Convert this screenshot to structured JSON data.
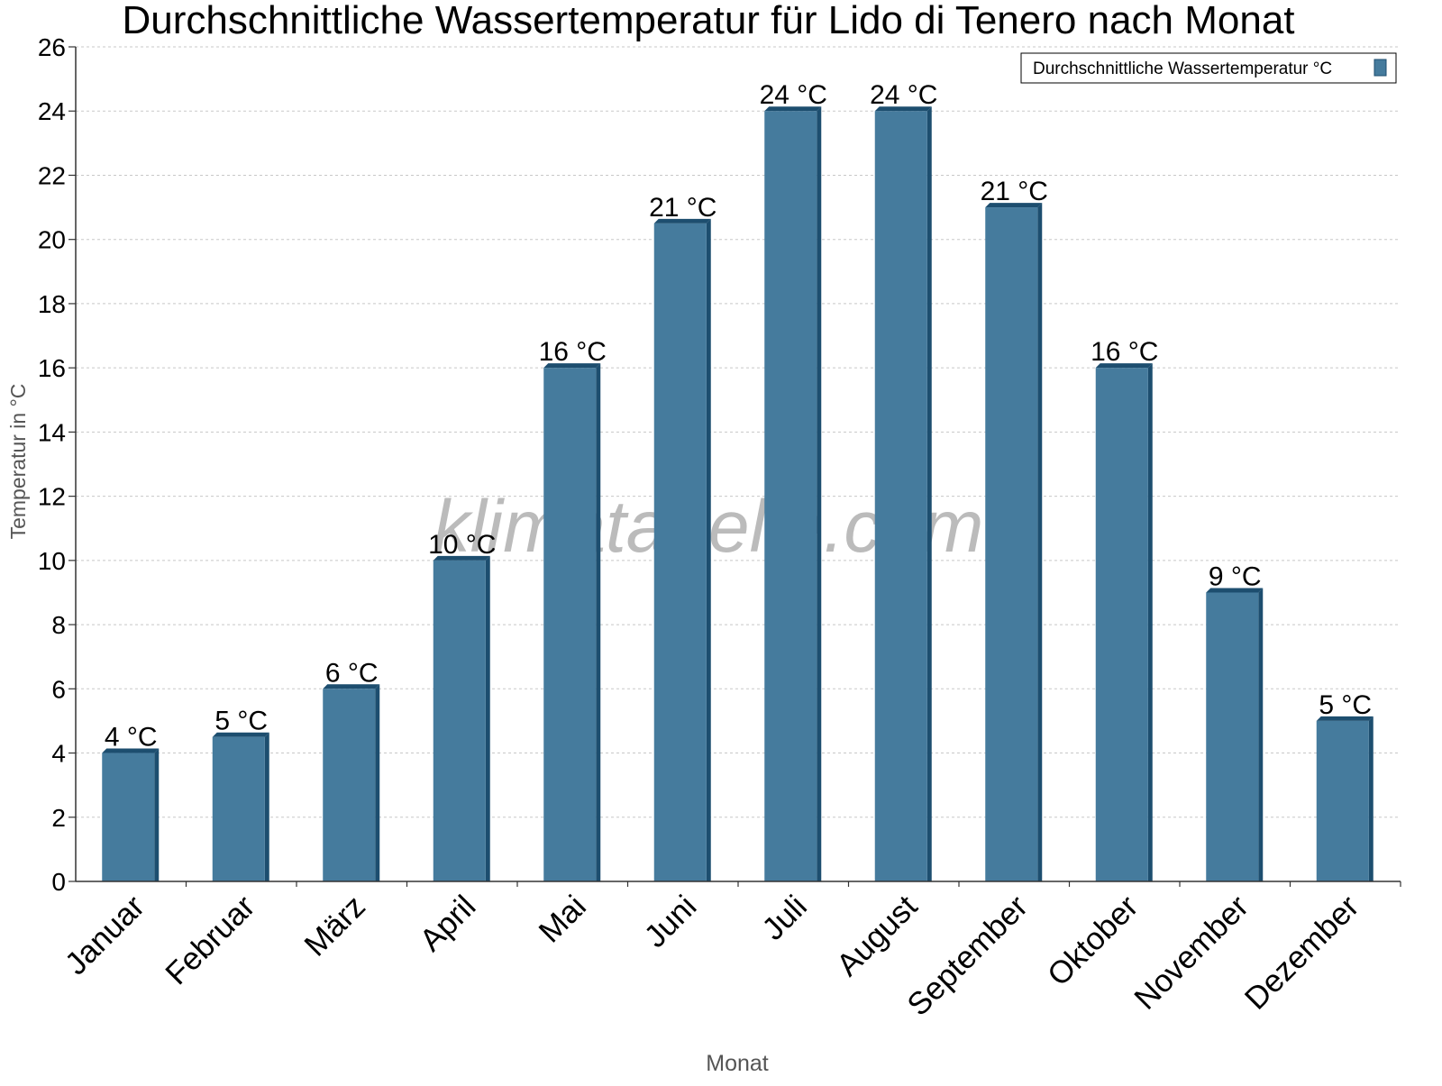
{
  "chart_data": {
    "type": "bar",
    "title": "Durchschnittliche Wassertemperatur für Lido di Tenero nach Monat",
    "xlabel": "Monat",
    "ylabel": "Temperatur in °C",
    "categories": [
      "Januar",
      "Februar",
      "März",
      "April",
      "Mai",
      "Juni",
      "Juli",
      "August",
      "September",
      "Oktober",
      "November",
      "Dezember"
    ],
    "series": [
      {
        "name": "Durchschnittliche Wassertemperatur °C",
        "values": [
          4.0,
          4.5,
          6.0,
          10.0,
          16.0,
          20.5,
          24.0,
          24.0,
          21.0,
          16.0,
          9.0,
          5.0
        ],
        "labels": [
          "4 °C",
          "5 °C",
          "6 °C",
          "10 °C",
          "16 °C",
          "21 °C",
          "24 °C",
          "24 °C",
          "21 °C",
          "16 °C",
          "9 °C",
          "5 °C"
        ]
      }
    ],
    "ylim": [
      0,
      26
    ],
    "yticks": [
      "0",
      "2",
      "4",
      "6",
      "8",
      "10",
      "12",
      "14",
      "16",
      "18",
      "20",
      "22",
      "24",
      "26"
    ],
    "grid": true,
    "legend": "top-right",
    "watermark": "klimatabelle.com",
    "colors": {
      "bar": "#457b9d",
      "bar_shade": "#1d4e6f",
      "grid": "#c8c8c8",
      "axis": "#333333",
      "axis_title": "#555555",
      "watermark": "#555555"
    }
  }
}
